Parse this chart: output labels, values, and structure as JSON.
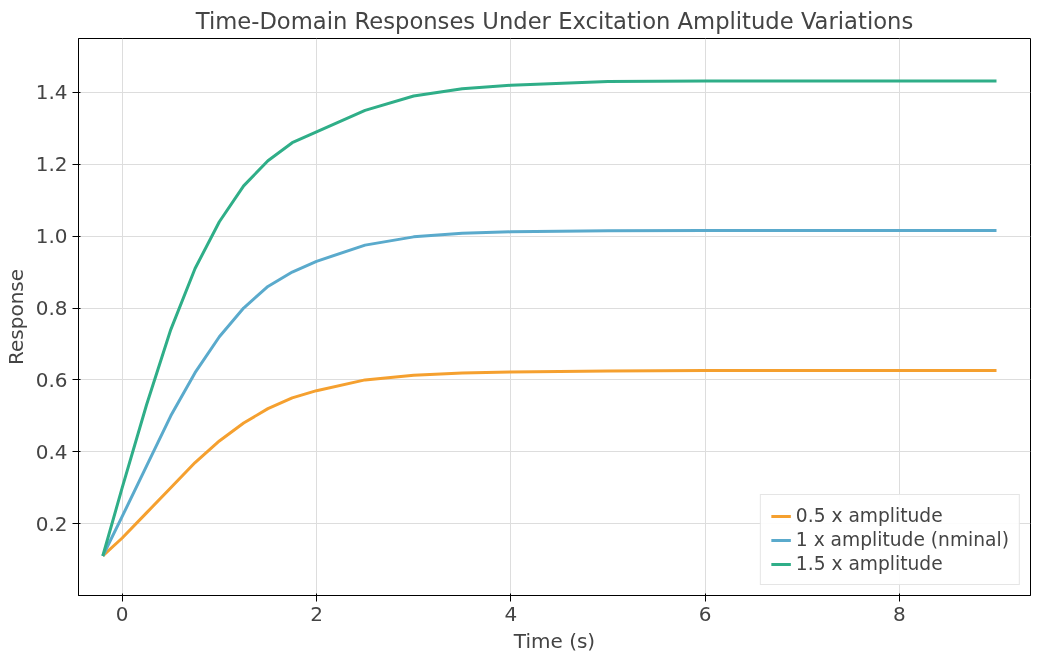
{
  "chart_data": {
    "type": "line",
    "title": "Time-Domain Responses Under Excitation Amplitude Variations",
    "xlabel": "Time (s)",
    "ylabel": "Response",
    "xlim": [
      -0.45,
      9.35
    ],
    "ylim": [
      0.0,
      1.55
    ],
    "xticks": [
      0,
      2,
      4,
      6,
      8
    ],
    "yticks": [
      0.2,
      0.4,
      0.6,
      0.8,
      {
        "value": 1.0,
        "label": "1.0"
      },
      1.2,
      1.4
    ],
    "grid": true,
    "legend": "bottom right",
    "line_style": "solid",
    "x": [
      -0.2,
      0,
      0.25,
      0.5,
      0.75,
      1,
      1.25,
      1.5,
      1.75,
      2,
      2.5,
      3,
      3.5,
      4,
      5,
      6,
      7,
      8,
      9
    ],
    "series": [
      {
        "name": "0.5 x amplitude",
        "color": "#f5a02f",
        "values": [
          0.11,
          0.16,
          0.23,
          0.3,
          0.37,
          0.43,
          0.48,
          0.52,
          0.55,
          0.57,
          0.6,
          0.613,
          0.619,
          0.622,
          0.625,
          0.626,
          0.626,
          0.626,
          0.626
        ]
      },
      {
        "name": "1 x amplitude (nminal)",
        "color": "#5aaacc",
        "values": [
          0.11,
          0.22,
          0.36,
          0.5,
          0.62,
          0.72,
          0.8,
          0.86,
          0.9,
          0.93,
          0.975,
          0.998,
          1.008,
          1.012,
          1.015,
          1.016,
          1.016,
          1.016,
          1.016
        ]
      },
      {
        "name": "1.5 x amplitude",
        "color": "#2fae88",
        "values": [
          0.11,
          0.3,
          0.53,
          0.74,
          0.91,
          1.04,
          1.14,
          1.21,
          1.26,
          1.29,
          1.35,
          1.39,
          1.41,
          1.42,
          1.43,
          1.432,
          1.432,
          1.432,
          1.432
        ]
      }
    ]
  }
}
